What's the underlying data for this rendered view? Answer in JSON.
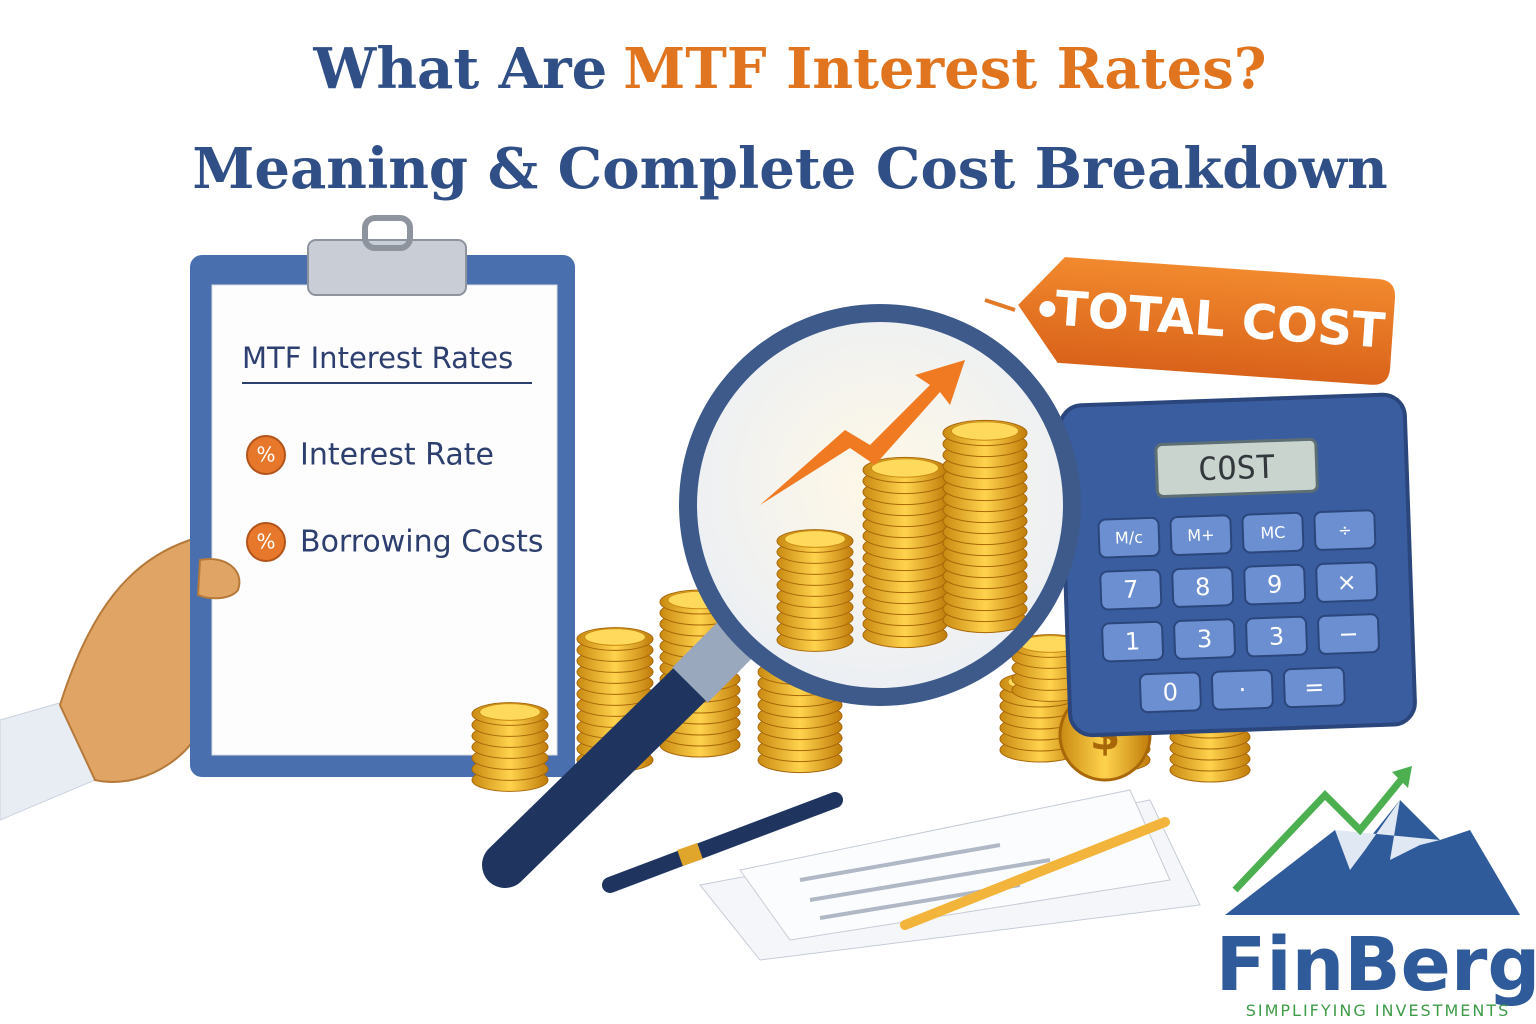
{
  "header": {
    "title_lead": "What Are",
    "title_highlight": "MTF Interest Rates?",
    "subtitle": "Meaning & Complete Cost Breakdown"
  },
  "clipboard": {
    "heading": "MTF Interest Rates",
    "items": [
      {
        "icon": "%",
        "label": "Interest Rate"
      },
      {
        "icon": "%",
        "label": "Borrowing Costs"
      }
    ]
  },
  "tag": {
    "label": "TOTAL COST"
  },
  "calculator": {
    "display": "COST",
    "keys": [
      [
        "M/c",
        "M+",
        "MC",
        "÷"
      ],
      [
        "7",
        "8",
        "9",
        "×"
      ],
      [
        "1",
        "3",
        "3",
        "−"
      ],
      [
        "0",
        "·",
        "="
      ]
    ]
  },
  "coin_symbol": "$",
  "logo": {
    "name": "FinBerg",
    "tagline": "SIMPLIFYING INVESTMENTS"
  }
}
